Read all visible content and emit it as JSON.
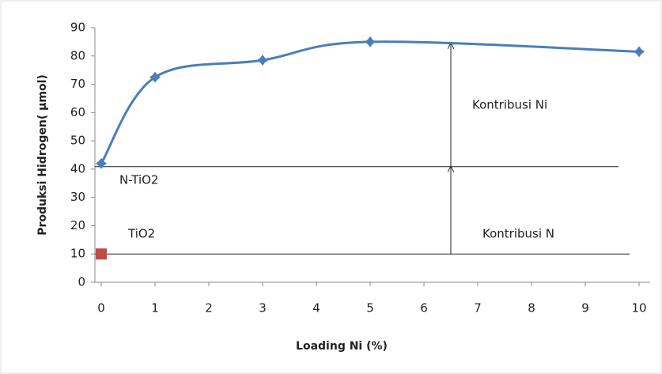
{
  "chart_data": {
    "type": "line",
    "x_label": "Loading Ni (%)",
    "y_label": "Produksi Hidrogen( µmol)",
    "series": [
      {
        "name": "N-TiO2",
        "color": "#4a7ebb",
        "x": [
          0,
          1,
          3,
          5,
          10
        ],
        "values": [
          42,
          72.5,
          78.5,
          85,
          81.5
        ]
      },
      {
        "name": "TiO2",
        "color": "#be4b48",
        "x": [
          0
        ],
        "values": [
          10
        ]
      }
    ],
    "annotations": [
      "Kontribusi Ni",
      "Kontribusi N"
    ],
    "xlim": [
      0,
      10
    ],
    "xticks": [
      0,
      1,
      2,
      3,
      4,
      5,
      6,
      7,
      8,
      9,
      10
    ],
    "ylim": [
      0,
      90
    ],
    "yticks": [
      0,
      10,
      20,
      30,
      40,
      50,
      60,
      70,
      80,
      90
    ]
  }
}
